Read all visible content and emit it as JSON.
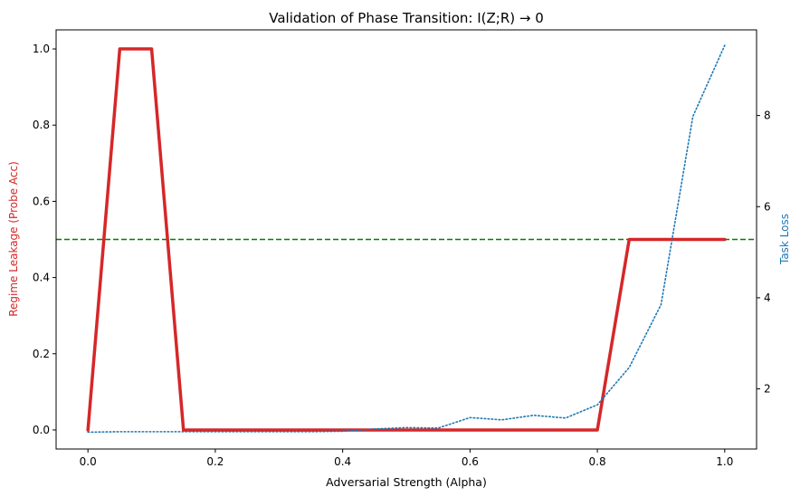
{
  "chart_data": {
    "type": "line",
    "title": "Validation of Phase Transition: I(Z;R) → 0",
    "xlabel": "Adversarial Strength (Alpha)",
    "ylabel_left": "Regime Leakage (Probe Acc)",
    "ylabel_right": "Task Loss",
    "colors": {
      "leakage": "#d62728",
      "loss": "#1f77b4",
      "reference": "#008000",
      "axes": "#000000"
    },
    "xlim": [
      -0.05,
      1.05
    ],
    "ylim_left": [
      -0.05,
      1.05
    ],
    "ylim_right": [
      0.68,
      9.88
    ],
    "grid": false,
    "x_ticks": [
      0.0,
      0.2,
      0.4,
      0.6,
      0.8,
      1.0
    ],
    "x_tick_labels": [
      "0.0",
      "0.2",
      "0.4",
      "0.6",
      "0.8",
      "1.0"
    ],
    "y_left_ticks": [
      0.0,
      0.2,
      0.4,
      0.6,
      0.8,
      1.0
    ],
    "y_left_tick_labels": [
      "0.0",
      "0.2",
      "0.4",
      "0.6",
      "0.8",
      "1.0"
    ],
    "y_right_ticks": [
      2,
      4,
      6,
      8
    ],
    "y_right_tick_labels": [
      "2",
      "4",
      "6",
      "8"
    ],
    "x": [
      0.0,
      0.05,
      0.1,
      0.15,
      0.2,
      0.25,
      0.3,
      0.35,
      0.4,
      0.45,
      0.5,
      0.55,
      0.6,
      0.65,
      0.7,
      0.75,
      0.8,
      0.85,
      0.9,
      0.95,
      1.0
    ],
    "series": [
      {
        "key": "leakage",
        "axis": "left",
        "style": "solid",
        "values": [
          0.0,
          1.0,
          1.0,
          0.0,
          0.0,
          0.0,
          0.0,
          0.0,
          0.0,
          0.0,
          0.0,
          0.0,
          0.0,
          0.0,
          0.0,
          0.0,
          0.0,
          0.5,
          0.5,
          0.5,
          0.5
        ]
      },
      {
        "key": "loss",
        "axis": "right",
        "style": "dotted",
        "values": [
          1.05,
          1.06,
          1.06,
          1.06,
          1.06,
          1.06,
          1.06,
          1.06,
          1.07,
          1.12,
          1.15,
          1.14,
          1.37,
          1.32,
          1.42,
          1.36,
          1.65,
          2.47,
          3.85,
          7.98,
          9.54
        ]
      }
    ],
    "reference_line": {
      "axis": "left",
      "y": 0.5,
      "style": "dashed"
    }
  }
}
